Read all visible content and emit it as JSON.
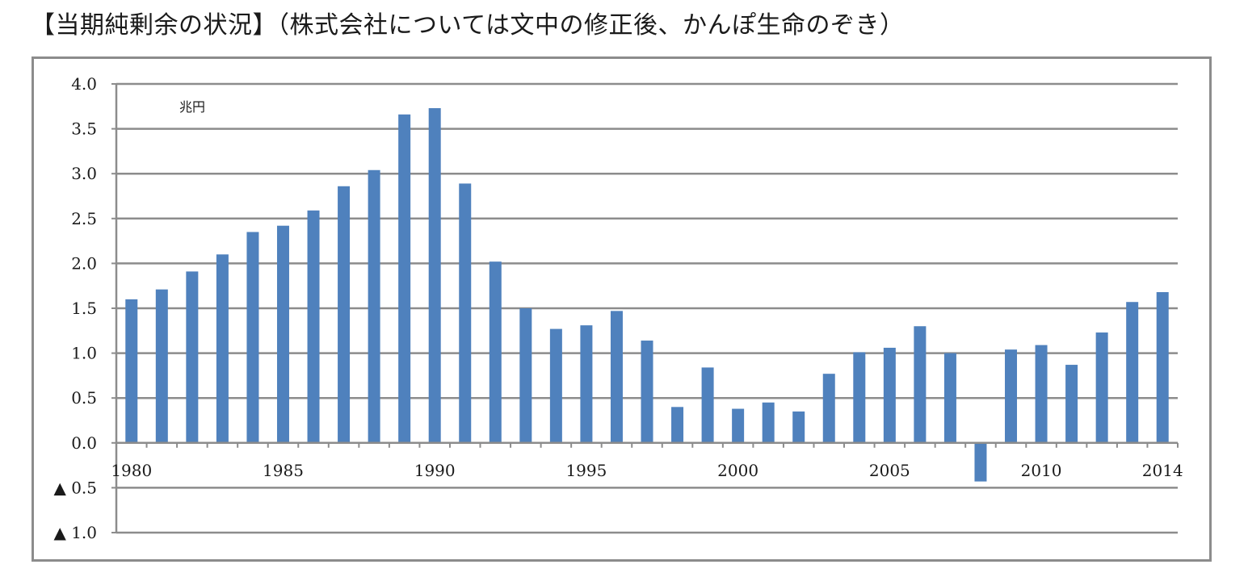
{
  "title": "【当期純剰余の状況】（株式会社については文中の修正後、かんぽ生命のぞき）",
  "chart_data": {
    "type": "bar",
    "title": "【当期純剰余の状況】（株式会社については文中の修正後、かんぽ生命のぞき）",
    "unit_label": "兆円",
    "xlabel": "",
    "ylabel": "",
    "ylim": [
      -1.0,
      4.0
    ],
    "ytick_values": [
      4.0,
      3.5,
      3.0,
      2.5,
      2.0,
      1.5,
      1.0,
      0.5,
      0.0,
      -0.5,
      -1.0
    ],
    "ytick_labels": [
      "4.0",
      "3.5",
      "3.0",
      "2.5",
      "2.0",
      "1.5",
      "1.0",
      "0.5",
      "0.0",
      "▲ 0.5",
      "▲ 1.0"
    ],
    "xtick_labels": [
      {
        "year": 1980,
        "label": "1980"
      },
      {
        "year": 1985,
        "label": "1985"
      },
      {
        "year": 1990,
        "label": "1990"
      },
      {
        "year": 1995,
        "label": "1995"
      },
      {
        "year": 2000,
        "label": "2000"
      },
      {
        "year": 2005,
        "label": "2005"
      },
      {
        "year": 2010,
        "label": "2010"
      },
      {
        "year": 2014,
        "label": "2014"
      }
    ],
    "grid": true,
    "bar_color": "#4f81bd",
    "categories": [
      1980,
      1981,
      1982,
      1983,
      1984,
      1985,
      1986,
      1987,
      1988,
      1989,
      1990,
      1991,
      1992,
      1993,
      1994,
      1995,
      1996,
      1997,
      1998,
      1999,
      2000,
      2001,
      2002,
      2003,
      2004,
      2005,
      2006,
      2007,
      2008,
      2009,
      2010,
      2011,
      2012,
      2013,
      2014
    ],
    "values": [
      1.6,
      1.71,
      1.91,
      2.1,
      2.35,
      2.42,
      2.59,
      2.86,
      3.04,
      3.66,
      3.73,
      2.89,
      2.02,
      1.5,
      1.27,
      1.31,
      1.47,
      1.14,
      0.4,
      0.84,
      0.38,
      0.45,
      0.35,
      0.77,
      1.01,
      1.06,
      1.3,
      1.0,
      -0.43,
      1.04,
      1.09,
      0.87,
      1.23,
      1.57,
      1.68
    ]
  }
}
